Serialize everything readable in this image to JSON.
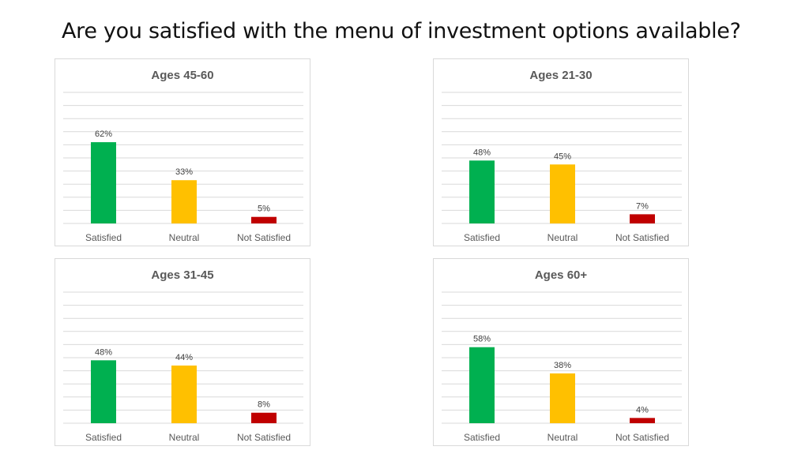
{
  "page": {
    "title": "Are you satisfied with the menu of investment options available?"
  },
  "chart_data": [
    {
      "type": "bar",
      "title": "Ages 45-60",
      "categories": [
        "Satisfied",
        "Neutral",
        "Not Satisfied"
      ],
      "values": [
        62,
        33,
        5
      ],
      "data_labels": [
        "62%",
        "33%",
        "5%"
      ],
      "colors": [
        "#00b050",
        "#ffc000",
        "#c00000"
      ],
      "ylim": [
        0,
        100
      ],
      "grid": true,
      "legend": "none"
    },
    {
      "type": "bar",
      "title": "Ages 21-30",
      "categories": [
        "Satisfied",
        "Neutral",
        "Not Satisfied"
      ],
      "values": [
        48,
        45,
        7
      ],
      "data_labels": [
        "48%",
        "45%",
        "7%"
      ],
      "colors": [
        "#00b050",
        "#ffc000",
        "#c00000"
      ],
      "ylim": [
        0,
        100
      ],
      "grid": true,
      "legend": "none"
    },
    {
      "type": "bar",
      "title": "Ages 31-45",
      "categories": [
        "Satisfied",
        "Neutral",
        "Not Satisfied"
      ],
      "values": [
        48,
        44,
        8
      ],
      "data_labels": [
        "48%",
        "44%",
        "8%"
      ],
      "colors": [
        "#00b050",
        "#ffc000",
        "#c00000"
      ],
      "ylim": [
        0,
        100
      ],
      "grid": true,
      "legend": "none"
    },
    {
      "type": "bar",
      "title": "Ages 60+",
      "categories": [
        "Satisfied",
        "Neutral",
        "Not Satisfied"
      ],
      "values": [
        58,
        38,
        4
      ],
      "data_labels": [
        "58%",
        "38%",
        "4%"
      ],
      "colors": [
        "#00b050",
        "#ffc000",
        "#c00000"
      ],
      "ylim": [
        0,
        100
      ],
      "grid": true,
      "legend": "none"
    }
  ]
}
